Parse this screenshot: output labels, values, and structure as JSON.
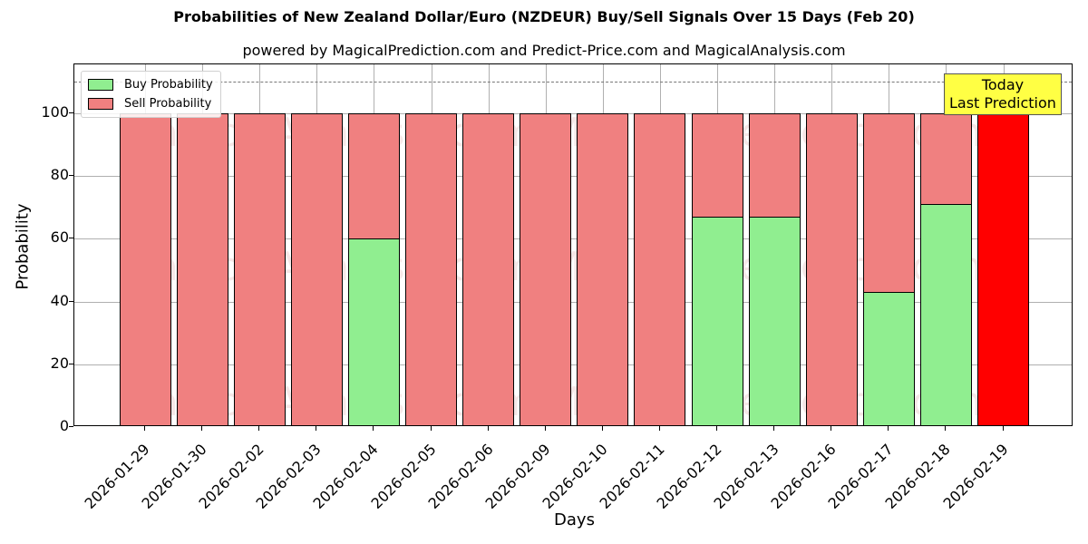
{
  "title": "Probabilities of New Zealand Dollar/Euro (NZDEUR) Buy/Sell Signals Over 15 Days (Feb 20)",
  "subtitle": "powered by MagicalPrediction.com and Predict-Price.com and MagicalAnalysis.com",
  "legend": {
    "buy_label": "Buy Probability",
    "sell_label": "Sell Probability"
  },
  "annotation": {
    "line1": "Today",
    "line2": "Last Prediction"
  },
  "watermarks": [
    "MagicalAnalysis.com",
    "MagicalPrediction.com"
  ],
  "colors": {
    "buy": "#90ee90",
    "sell": "#f08080",
    "today": "#ff0000",
    "annotation_bg": "#ffff44",
    "dash_line": "#777777"
  },
  "y_ticks": [
    "0",
    "20",
    "40",
    "60",
    "80",
    "100"
  ],
  "chart_data": {
    "type": "bar",
    "stacked": true,
    "title": "Probabilities of New Zealand Dollar/Euro (NZDEUR) Buy/Sell Signals Over 15 Days (Feb 20)",
    "subtitle": "powered by MagicalPrediction.com and Predict-Price.com and MagicalAnalysis.com",
    "xlabel": "Days",
    "ylabel": "Probability",
    "ylim": [
      0,
      115
    ],
    "yticks": [
      0,
      20,
      40,
      60,
      80,
      100
    ],
    "grid": true,
    "legend_position": "upper left",
    "reference_line": {
      "y": 110,
      "style": "dashed"
    },
    "categories": [
      "2026-01-29",
      "2026-01-30",
      "2026-02-02",
      "2026-02-03",
      "2026-02-04",
      "2026-02-05",
      "2026-02-06",
      "2026-02-09",
      "2026-02-10",
      "2026-02-11",
      "2026-02-12",
      "2026-02-13",
      "2026-02-16",
      "2026-02-17",
      "2026-02-18",
      "2026-02-19"
    ],
    "series": [
      {
        "name": "Buy Probability",
        "color": "#90ee90",
        "values": [
          0,
          0,
          0,
          0,
          60,
          0,
          0,
          0,
          0,
          0,
          67,
          67,
          0,
          43,
          71,
          0
        ]
      },
      {
        "name": "Sell Probability",
        "color": "#f08080",
        "values": [
          100,
          100,
          100,
          100,
          40,
          100,
          100,
          100,
          100,
          100,
          33,
          33,
          100,
          57,
          29,
          100
        ]
      }
    ],
    "highlight": {
      "category": "2026-02-19",
      "color": "#ff0000",
      "label": "Today\nLast Prediction"
    }
  }
}
